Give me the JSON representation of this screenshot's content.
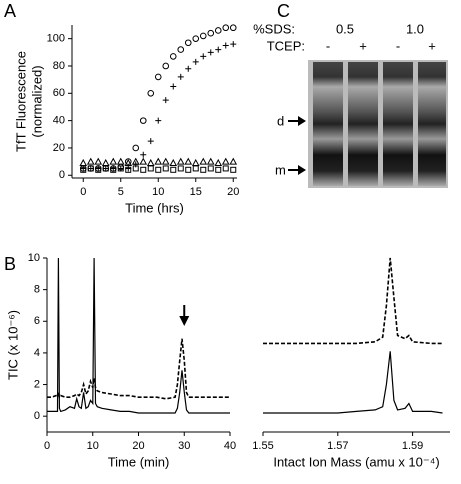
{
  "panels": [
    "A",
    "B",
    "C"
  ],
  "chart_data": [
    {
      "type": "scatter",
      "ylabel": [
        "TfT Fluorescence",
        "(normalized)"
      ],
      "xlabel": "Time (hrs)",
      "xlim": [
        -1.5,
        20.5
      ],
      "xticks": [
        0,
        5,
        10,
        15,
        20
      ],
      "ylim": [
        -2,
        110
      ],
      "yticks": [
        0,
        20,
        40,
        60,
        80,
        100
      ],
      "x": [
        0,
        1,
        2,
        3,
        4,
        5,
        6,
        7,
        8,
        9,
        10,
        11,
        12,
        13,
        14,
        15,
        16,
        17,
        18,
        19,
        20
      ],
      "series": [
        {
          "marker": "circle",
          "color": "#000000",
          "values": [
            5,
            5,
            5,
            5,
            5,
            6,
            10,
            20,
            40,
            60,
            72,
            80,
            87,
            92,
            97,
            100,
            102,
            104,
            106,
            108,
            108
          ]
        },
        {
          "marker": "plus",
          "color": "#000000",
          "values": [
            5,
            5,
            5,
            5,
            5,
            5,
            5,
            8,
            15,
            25,
            40,
            55,
            65,
            72,
            78,
            83,
            87,
            90,
            92,
            95,
            96
          ]
        },
        {
          "marker": "triangle",
          "color": "#000000",
          "values": [
            9,
            10,
            10,
            9,
            10,
            10,
            9,
            10,
            10,
            9,
            10,
            10,
            9,
            10,
            10,
            9,
            10,
            10,
            9,
            10,
            10
          ]
        },
        {
          "marker": "square",
          "color": "#000000",
          "values": [
            4,
            5,
            4,
            5,
            4,
            5,
            4,
            5,
            4,
            5,
            4,
            5,
            4,
            5,
            4,
            5,
            4,
            5,
            4,
            5,
            4
          ]
        }
      ]
    },
    {
      "type": "line",
      "ylabel": "TIC (x 10⁻⁶)",
      "xlabel": "Time (min)",
      "xlim": [
        0,
        40
      ],
      "xticks": [
        0,
        10,
        20,
        30,
        40
      ],
      "ylim": [
        -1,
        10
      ],
      "yticks": [
        0,
        2,
        4,
        6,
        8,
        10
      ],
      "x": [
        0,
        1,
        2,
        2.3,
        2.5,
        2.7,
        3,
        4,
        5,
        6,
        6.5,
        7,
        7.5,
        8,
        8.5,
        9,
        9.5,
        10,
        10.3,
        10.6,
        11,
        12,
        14,
        16,
        18,
        20,
        22,
        24,
        26,
        28,
        28.5,
        29,
        29.5,
        30,
        30.5,
        31,
        32,
        34,
        36,
        38,
        40
      ],
      "series": [
        {
          "dash": false,
          "color": "#000000",
          "values": [
            0.3,
            0.3,
            0.3,
            0.3,
            10,
            0.5,
            0.3,
            0.4,
            0.6,
            0.5,
            1.1,
            0.6,
            0.5,
            1.5,
            0.5,
            0.6,
            1.0,
            0.8,
            10,
            0.8,
            0.6,
            0.5,
            0.4,
            0.3,
            0.3,
            0.2,
            0.2,
            0.2,
            0.2,
            0.2,
            0.5,
            1.5,
            2.9,
            1.5,
            0.4,
            0.2,
            0.2,
            0.2,
            0.2,
            0.2,
            0.2
          ]
        },
        {
          "dash": true,
          "color": "#000000",
          "values": [
            1.2,
            1.2,
            1.3,
            1.3,
            1.4,
            1.2,
            1.3,
            1.2,
            1.2,
            1.3,
            1.4,
            1.3,
            1.5,
            2.0,
            1.4,
            1.6,
            2.2,
            1.8,
            2.4,
            1.8,
            1.6,
            1.5,
            1.4,
            1.3,
            1.3,
            1.2,
            1.2,
            1.2,
            1.1,
            1.2,
            2.0,
            3.5,
            4.9,
            3.5,
            1.5,
            1.2,
            1.2,
            1.2,
            1.2,
            1.2,
            1.2
          ]
        }
      ],
      "arrow_at": 30
    },
    {
      "type": "line",
      "xlabel": "Intact Ion Mass (amu x 10⁻⁴)",
      "xlim": [
        1.55,
        1.6
      ],
      "xticks": [
        1.55,
        1.57,
        1.59
      ],
      "ylim": [
        -1,
        10
      ],
      "x": [
        1.55,
        1.56,
        1.57,
        1.575,
        1.58,
        1.582,
        1.583,
        1.584,
        1.585,
        1.586,
        1.588,
        1.589,
        1.59,
        1.595,
        1.598
      ],
      "series": [
        {
          "dash": false,
          "color": "#000000",
          "values": [
            0.2,
            0.2,
            0.2,
            0.3,
            0.4,
            0.6,
            2.0,
            4.1,
            1.0,
            0.4,
            0.5,
            0.8,
            0.3,
            0.3,
            0.2
          ]
        },
        {
          "dash": true,
          "color": "#000000",
          "values": [
            4.6,
            4.6,
            4.6,
            4.6,
            4.7,
            5,
            7,
            10,
            7.5,
            5.1,
            4.9,
            5.1,
            4.7,
            4.6,
            4.6
          ]
        }
      ]
    }
  ],
  "gel": {
    "sds_label": "%SDS:",
    "sds": [
      "0.5",
      "1.0"
    ],
    "tcep_label": "TCEP:",
    "tcep": [
      "-",
      "+",
      "-",
      "+"
    ],
    "bands": [
      "d",
      "m"
    ]
  }
}
